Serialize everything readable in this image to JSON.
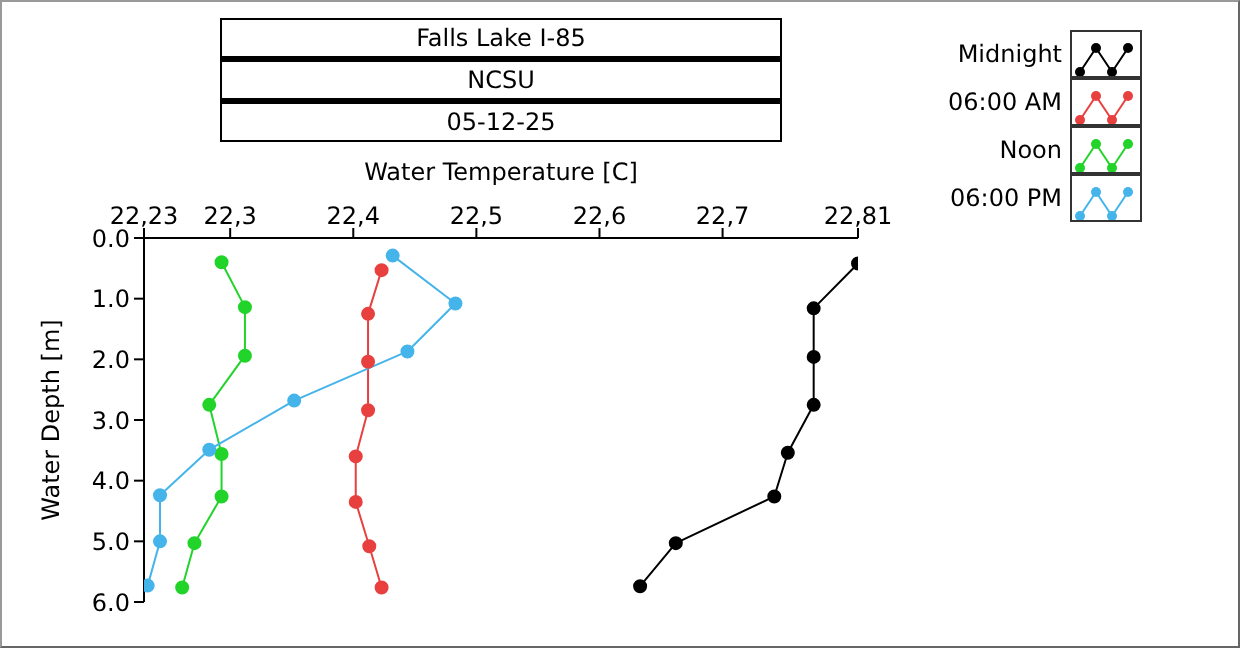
{
  "chart_data": {
    "type": "line",
    "title": "Falls Lake I-85",
    "subtitle": "NCSU",
    "annotations": [
      "05-12-25"
    ],
    "xlabel": "Water Temperature [C]",
    "ylabel": "Water Depth [m]",
    "xlim": [
      22.23,
      22.81
    ],
    "xticks": [
      {
        "value": 22.23,
        "label": "22,23"
      },
      {
        "value": 22.3,
        "label": "22,3"
      },
      {
        "value": 22.4,
        "label": "22,4"
      },
      {
        "value": 22.5,
        "label": "22,5"
      },
      {
        "value": 22.6,
        "label": "22,6"
      },
      {
        "value": 22.7,
        "label": "22,7"
      },
      {
        "value": 22.81,
        "label": "22,81"
      }
    ],
    "ylim": [
      6,
      0
    ],
    "yticks": [
      {
        "value": 0,
        "label": "0.0"
      },
      {
        "value": 1,
        "label": "1.0"
      },
      {
        "value": 2,
        "label": "2.0"
      },
      {
        "value": 3,
        "label": "3.0"
      },
      {
        "value": 4,
        "label": "4.0"
      },
      {
        "value": 5,
        "label": "5.0"
      },
      {
        "value": 6,
        "label": "6.0"
      }
    ],
    "legend": "top right",
    "marker": "circle",
    "line_style": "solid",
    "series": [
      {
        "name": "Midnight",
        "color": "#000000",
        "x": [
          22.81,
          22.774,
          22.774,
          22.774,
          22.753,
          22.742,
          22.662,
          22.633
        ],
        "values": [
          0.42,
          1.16,
          1.96,
          2.75,
          3.54,
          4.26,
          5.03,
          5.74
        ]
      },
      {
        "name": "06:00 AM",
        "color": "#e8403f",
        "x": [
          22.423,
          22.412,
          22.412,
          22.412,
          22.402,
          22.402,
          22.413,
          22.423
        ],
        "values": [
          0.53,
          1.25,
          2.04,
          2.84,
          3.6,
          4.35,
          5.08,
          5.76
        ]
      },
      {
        "name": "Noon",
        "color": "#22d42a",
        "x": [
          22.293,
          22.312,
          22.312,
          22.283,
          22.293,
          22.293,
          22.271,
          22.261
        ],
        "values": [
          0.4,
          1.14,
          1.94,
          2.75,
          3.56,
          4.26,
          5.03,
          5.76
        ]
      },
      {
        "name": "06:00 PM",
        "color": "#45b4ea",
        "x": [
          22.432,
          22.483,
          22.444,
          22.352,
          22.283,
          22.243,
          22.243,
          22.233
        ],
        "values": [
          0.29,
          1.08,
          1.87,
          2.68,
          3.49,
          4.24,
          5.0,
          5.73
        ]
      }
    ]
  }
}
